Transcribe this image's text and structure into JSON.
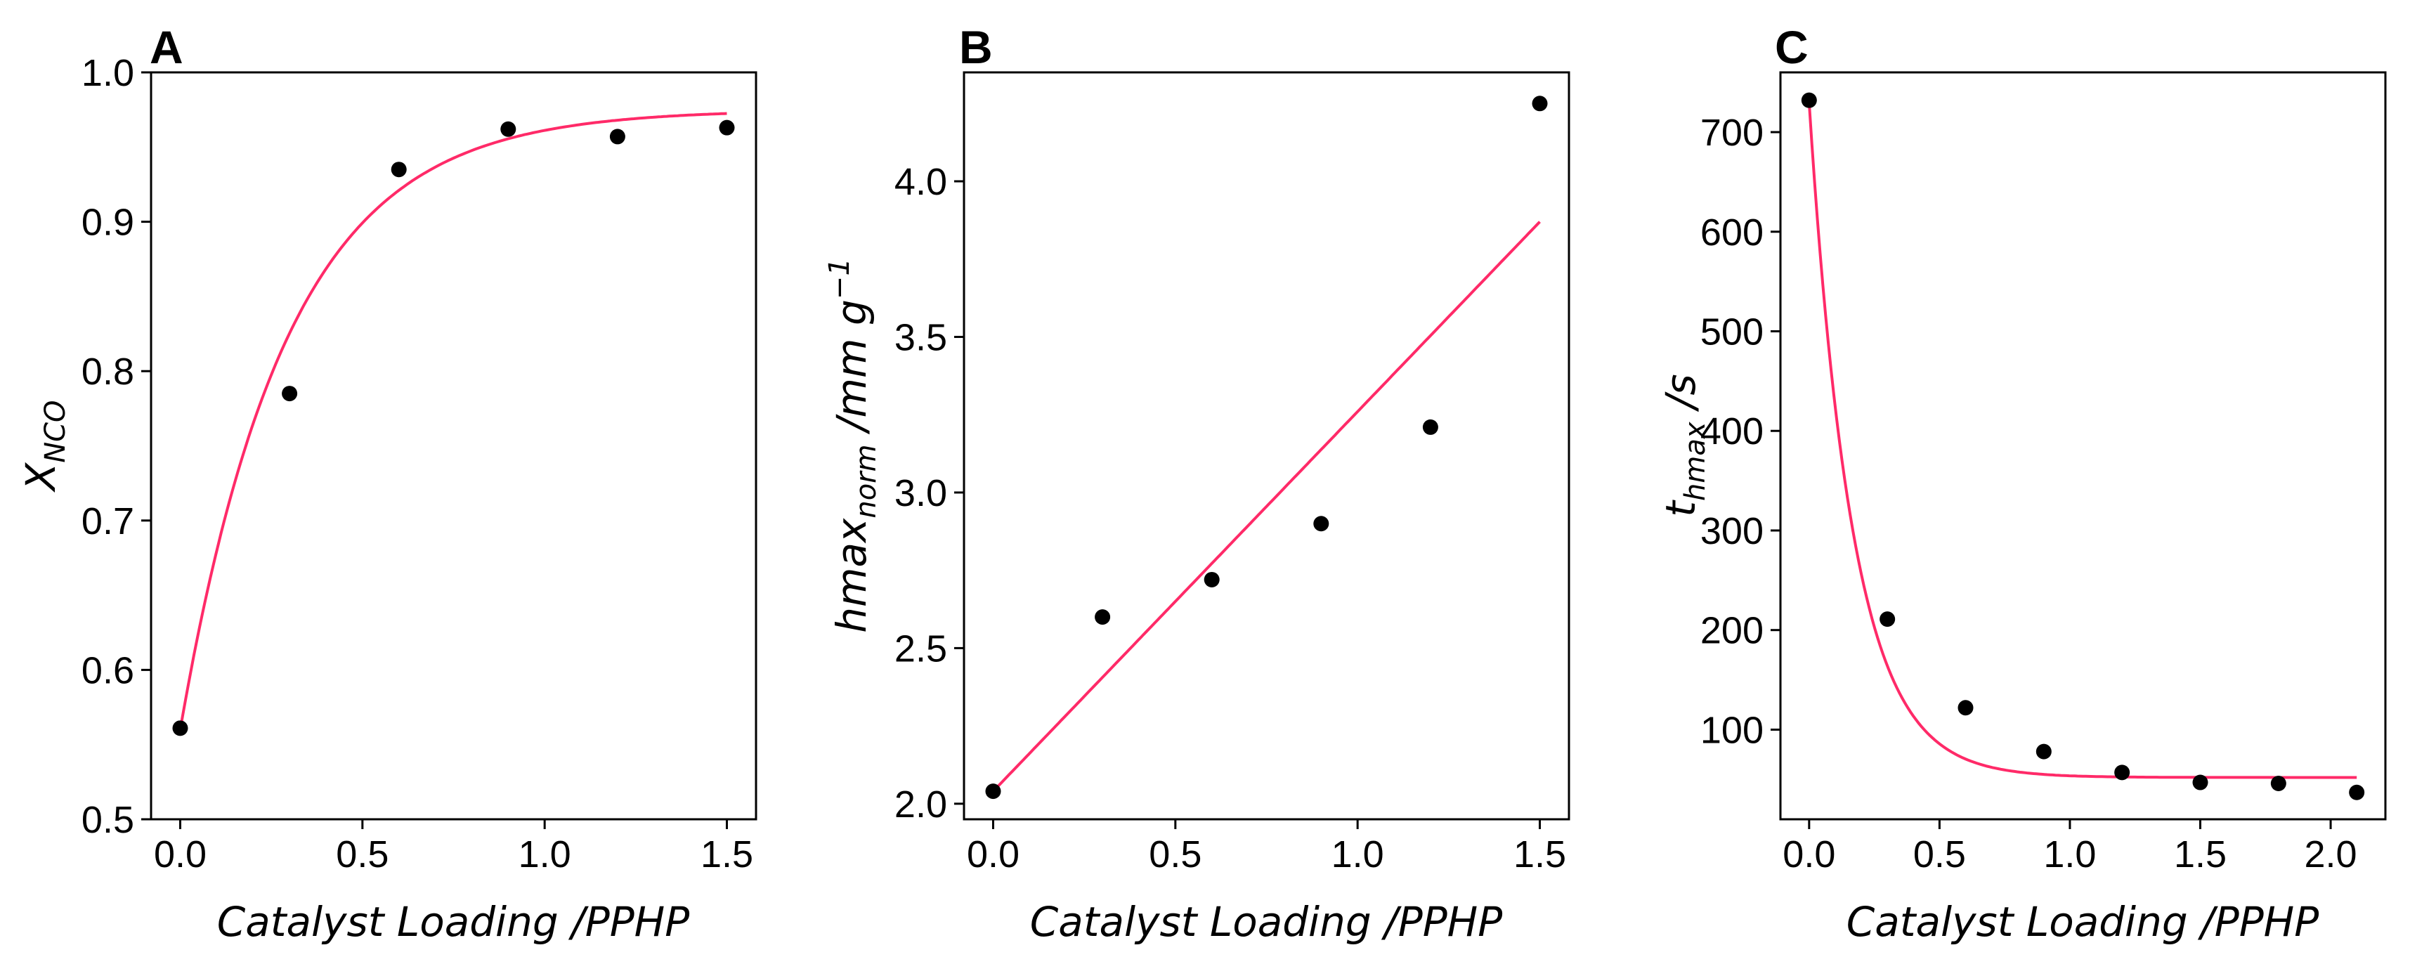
{
  "style": {
    "point_color": "#000000",
    "fit_color": "#ff2a68"
  },
  "chart_data": [
    {
      "type": "scatter",
      "panel": "A",
      "xlabel": "Catalyst Loading /PPHP",
      "ylabel_main": "X",
      "ylabel_sub": "NCO",
      "xlim": [
        -0.08,
        1.58
      ],
      "ylim": [
        0.5,
        1.0
      ],
      "xticks": [
        0.0,
        0.5,
        1.0,
        1.5
      ],
      "xtick_labels": [
        "0.0",
        "0.5",
        "1.0",
        "1.5"
      ],
      "yticks": [
        0.5,
        0.6,
        0.7,
        0.8,
        0.9,
        1.0
      ],
      "ytick_labels": [
        "0.5",
        "0.6",
        "0.7",
        "0.8",
        "0.9",
        "1.0"
      ],
      "x": [
        0.0,
        0.3,
        0.6,
        0.9,
        1.2,
        1.5
      ],
      "y": [
        0.561,
        0.785,
        0.935,
        0.962,
        0.957,
        0.963
      ],
      "fit": {
        "model": "exp_approach",
        "a": 0.975,
        "b": 0.415,
        "k": 3.4,
        "x_range": [
          0.0,
          1.5
        ]
      }
    },
    {
      "type": "scatter",
      "panel": "B",
      "xlabel": "Catalyst Loading /PPHP",
      "ylabel_main": "hmax",
      "ylabel_sub": "norm",
      "ylabel_unit": " /mm g",
      "ylabel_exp": "−1",
      "xlim": [
        -0.08,
        1.58
      ],
      "ylim": [
        1.95,
        4.35
      ],
      "xticks": [
        0.0,
        0.5,
        1.0,
        1.5
      ],
      "xtick_labels": [
        "0.0",
        "0.5",
        "1.0",
        "1.5"
      ],
      "yticks": [
        2.0,
        2.5,
        3.0,
        3.5,
        4.0
      ],
      "ytick_labels": [
        "2.0",
        "2.5",
        "3.0",
        "3.5",
        "4.0"
      ],
      "x": [
        0.0,
        0.3,
        0.6,
        0.9,
        1.2,
        1.5
      ],
      "y": [
        2.04,
        2.6,
        2.72,
        2.9,
        3.21,
        4.25
      ],
      "fit": {
        "model": "linear",
        "m": 1.22,
        "c": 2.04,
        "x_range": [
          0.0,
          1.5
        ]
      }
    },
    {
      "type": "scatter",
      "panel": "C",
      "xlabel": "Catalyst Loading /PPHP",
      "ylabel_main": "t",
      "ylabel_sub": "hmax",
      "ylabel_unit": " /s",
      "xlim": [
        -0.11,
        2.21
      ],
      "ylim": [
        10,
        760
      ],
      "xticks": [
        0.0,
        0.5,
        1.0,
        1.5,
        2.0
      ],
      "xtick_labels": [
        "0.0",
        "0.5",
        "1.0",
        "1.5",
        "2.0"
      ],
      "yticks": [
        100,
        200,
        300,
        400,
        500,
        600,
        700
      ],
      "ytick_labels": [
        "100",
        "200",
        "300",
        "400",
        "500",
        "600",
        "700"
      ],
      "x": [
        0.0,
        0.3,
        0.6,
        0.9,
        1.2,
        1.5,
        1.8,
        2.1
      ],
      "y": [
        732,
        211,
        122,
        78,
        57,
        47,
        46,
        37
      ],
      "fit": {
        "model": "exp_decay",
        "a": 52,
        "b": 678,
        "k": 6.0,
        "x_range": [
          0.0,
          2.1
        ]
      }
    }
  ]
}
